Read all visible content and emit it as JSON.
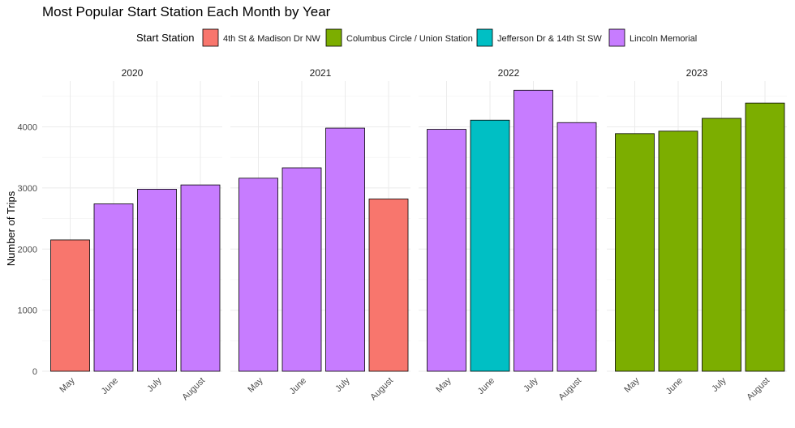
{
  "chart_data": {
    "type": "bar",
    "title": "Most Popular Start Station Each Month by Year",
    "ylabel": "Number of Trips",
    "xlabel": "",
    "ylim": [
      0,
      4750
    ],
    "yticks": [
      0,
      1000,
      2000,
      3000,
      4000
    ],
    "grid": true,
    "legend": {
      "title": "Start Station",
      "position": "top",
      "entries": [
        {
          "name": "4th St & Madison Dr NW",
          "color": "#F8766D"
        },
        {
          "name": "Columbus Circle / Union Station",
          "color": "#7CAE00"
        },
        {
          "name": "Jefferson Dr & 14th St SW",
          "color": "#00BFC4"
        },
        {
          "name": "Lincoln Memorial",
          "color": "#C77CFF"
        }
      ]
    },
    "categories": [
      "May",
      "June",
      "July",
      "August"
    ],
    "panels": [
      {
        "year": "2020",
        "values": [
          2150,
          2740,
          2980,
          3050
        ],
        "stations": [
          0,
          3,
          3,
          3
        ]
      },
      {
        "year": "2021",
        "values": [
          3160,
          3330,
          3980,
          2820
        ],
        "stations": [
          3,
          3,
          3,
          0
        ]
      },
      {
        "year": "2022",
        "values": [
          3960,
          4110,
          4600,
          4070
        ],
        "stations": [
          3,
          2,
          3,
          3
        ]
      },
      {
        "year": "2023",
        "values": [
          3890,
          3930,
          4140,
          4390
        ],
        "stations": [
          1,
          1,
          1,
          1
        ]
      }
    ]
  }
}
